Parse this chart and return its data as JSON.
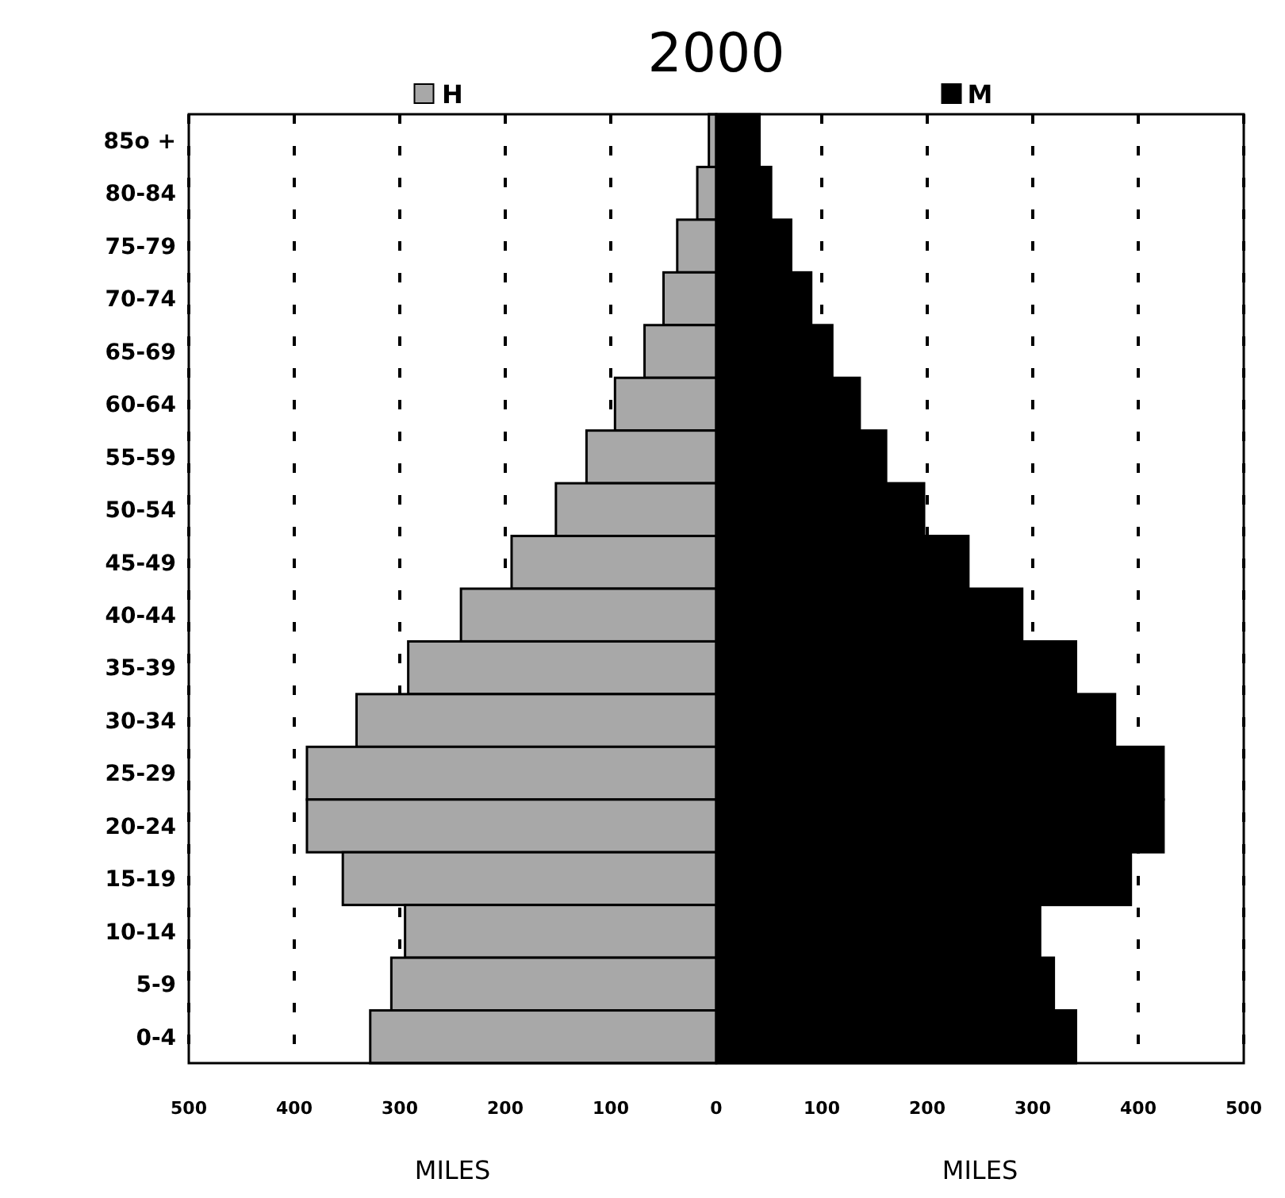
{
  "chart_data": {
    "type": "bar",
    "orientation": "horizontal",
    "title": "2000",
    "xlabel": "MILES",
    "categories": [
      "85o +",
      "80-84",
      "75-79",
      "70-74",
      "65-69",
      "60-64",
      "55-59",
      "50-54",
      "45-49",
      "40-44",
      "35-39",
      "30-34",
      "25-29",
      "20-24",
      "15-19",
      "10-14",
      "5-9",
      "0-4"
    ],
    "series": [
      {
        "name": "H",
        "color": "#a8a8a8",
        "values": [
          -7,
          -18,
          -37,
          -50,
          -68,
          -96,
          -123,
          -152,
          -194,
          -242,
          -292,
          -341,
          -388,
          -388,
          -354,
          -295,
          -308,
          -328
        ]
      },
      {
        "name": "M",
        "color": "#000000",
        "values": [
          41,
          52,
          71,
          90,
          110,
          136,
          161,
          197,
          239,
          290,
          341,
          378,
          424,
          424,
          393,
          307,
          320,
          341
        ]
      }
    ],
    "xlim": [
      -500,
      500
    ],
    "xticks": [
      {
        "value": -500,
        "label": "500"
      },
      {
        "value": -400,
        "label": "400"
      },
      {
        "value": -300,
        "label": "300"
      },
      {
        "value": -200,
        "label": "200"
      },
      {
        "value": -100,
        "label": "100"
      },
      0,
      100,
      200,
      300,
      400,
      500
    ],
    "grid": "x",
    "legend": "top",
    "stacked": true,
    "line_style": "dotted"
  }
}
